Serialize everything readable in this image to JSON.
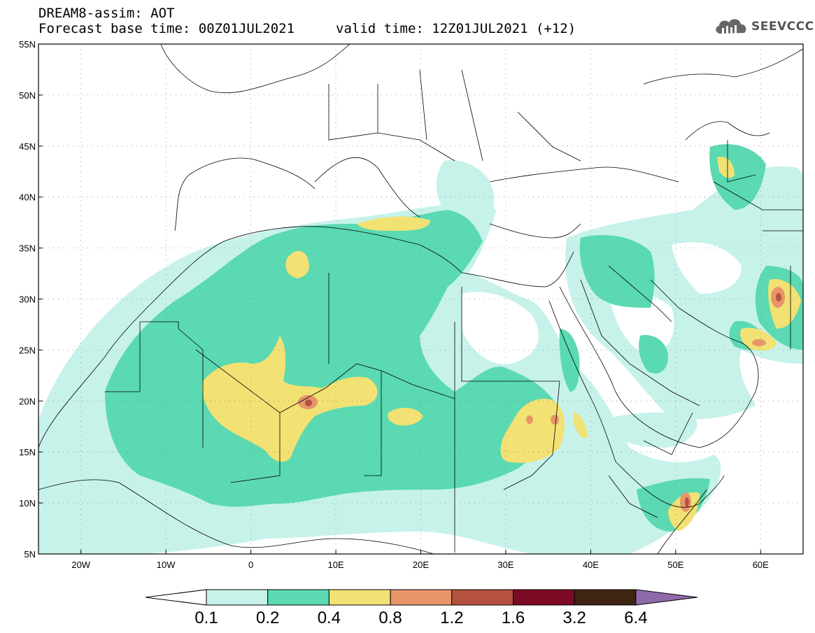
{
  "header": {
    "title": "DREAM8-assim: AOT",
    "base_time": "Forecast base time: 00Z01JUL2021",
    "valid_time": "valid time: 12Z01JUL2021 (+12)",
    "logo_text": "SEEVCCC"
  },
  "map": {
    "lon_range": [
      -25,
      65
    ],
    "lat_range": [
      5,
      55
    ],
    "lat_ticks": [
      "55N",
      "50N",
      "45N",
      "40N",
      "35N",
      "30N",
      "25N",
      "20N",
      "15N",
      "10N",
      "5N"
    ],
    "lat_values": [
      55,
      50,
      45,
      40,
      35,
      30,
      25,
      20,
      15,
      10,
      5
    ],
    "lon_ticks": [
      "20W",
      "10W",
      "0",
      "10E",
      "20E",
      "30E",
      "40E",
      "50E",
      "60E"
    ],
    "lon_values": [
      -20,
      -10,
      0,
      10,
      20,
      30,
      40,
      50,
      60
    ],
    "grid": "dotted"
  },
  "colorbar": {
    "labels": [
      "0.1",
      "0.2",
      "0.4",
      "0.8",
      "1.2",
      "1.6",
      "3.2",
      "6.4"
    ],
    "colors": [
      "#c6f2ea",
      "#5ad9b2",
      "#f2e173",
      "#e8956a",
      "#b5523f",
      "#7d0a24",
      "#3f2412",
      "#8f6aaa"
    ]
  },
  "colors": {
    "c1": "#c6f2ea",
    "c2": "#5ad9b2",
    "c3": "#f2e173",
    "c4": "#e8956a",
    "c5": "#b5523f"
  }
}
